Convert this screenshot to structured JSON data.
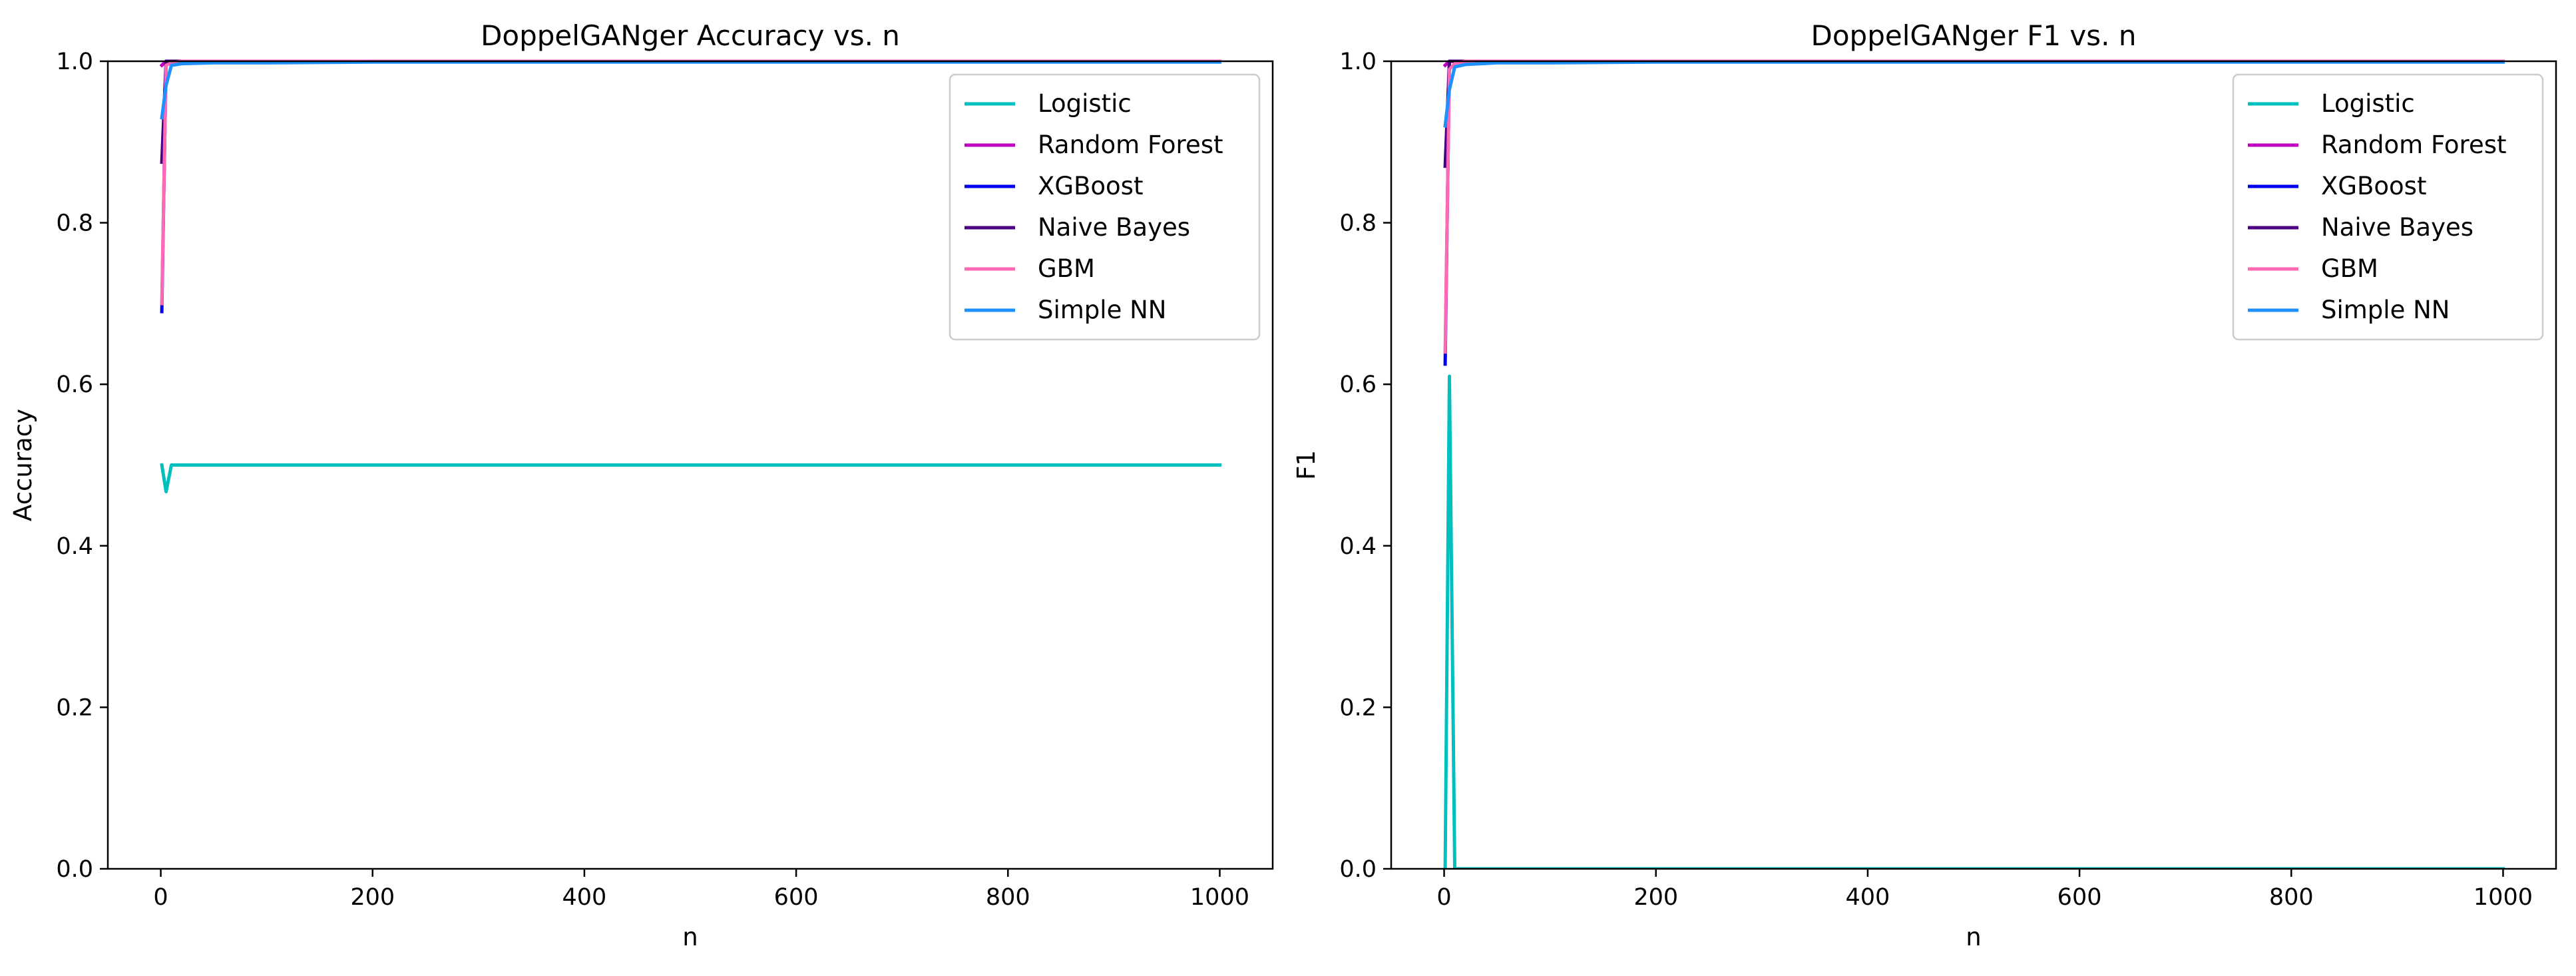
{
  "chart_data": [
    {
      "type": "line",
      "title": "DoppelGANger Accuracy vs. n",
      "xlabel": "n",
      "ylabel": "Accuracy",
      "xlim": [
        -50,
        1050
      ],
      "ylim": [
        0,
        1
      ],
      "xticks": [
        0,
        200,
        400,
        600,
        800,
        1000
      ],
      "yticks": [
        0.0,
        0.2,
        0.4,
        0.6,
        0.8,
        1.0
      ],
      "grid": false,
      "legend": "upper right",
      "series": [
        {
          "name": "Logistic",
          "color": "#00bfbf",
          "x": [
            1,
            5,
            10,
            20,
            50,
            100,
            200,
            500,
            1000
          ],
          "y": [
            0.5,
            0.467,
            0.5,
            0.5,
            0.5,
            0.5,
            0.5,
            0.5,
            0.5
          ]
        },
        {
          "name": "Random Forest",
          "color": "#bf00bf",
          "x": [
            1,
            5,
            10,
            20,
            50,
            100,
            200,
            500,
            1000
          ],
          "y": [
            0.995,
            1.0,
            1.0,
            1.0,
            1.0,
            1.0,
            1.0,
            1.0,
            1.0
          ]
        },
        {
          "name": "XGBoost",
          "color": "#0000ee",
          "x": [
            1,
            5,
            10,
            20,
            50,
            100,
            200,
            500,
            1000
          ],
          "y": [
            0.69,
            1.0,
            1.0,
            1.0,
            1.0,
            1.0,
            1.0,
            1.0,
            1.0
          ]
        },
        {
          "name": "Naive Bayes",
          "color": "#4b0082",
          "x": [
            1,
            5,
            10,
            20,
            50,
            100,
            200,
            500,
            1000
          ],
          "y": [
            0.875,
            1.0,
            1.0,
            1.0,
            1.0,
            1.0,
            1.0,
            1.0,
            1.0
          ]
        },
        {
          "name": "GBM",
          "color": "#ff69b4",
          "x": [
            1,
            5,
            10,
            20,
            50,
            100,
            200,
            500,
            1000
          ],
          "y": [
            0.7,
            0.995,
            0.998,
            1.0,
            1.0,
            1.0,
            1.0,
            1.0,
            1.0
          ]
        },
        {
          "name": "Simple NN",
          "color": "#1e90ff",
          "x": [
            1,
            5,
            10,
            20,
            50,
            100,
            200,
            500,
            1000
          ],
          "y": [
            0.93,
            0.97,
            0.995,
            0.997,
            0.998,
            0.998,
            0.999,
            0.999,
            0.999
          ]
        }
      ]
    },
    {
      "type": "line",
      "title": "DoppelGANger F1 vs. n",
      "xlabel": "n",
      "ylabel": "F1",
      "xlim": [
        -50,
        1050
      ],
      "ylim": [
        0,
        1
      ],
      "xticks": [
        0,
        200,
        400,
        600,
        800,
        1000
      ],
      "yticks": [
        0.0,
        0.2,
        0.4,
        0.6,
        0.8,
        1.0
      ],
      "grid": false,
      "legend": "upper right",
      "series": [
        {
          "name": "Logistic",
          "color": "#00bfbf",
          "x": [
            1,
            5,
            10,
            20,
            50,
            100,
            200,
            500,
            1000
          ],
          "y": [
            0.0,
            0.61,
            0.0,
            0.0,
            0.0,
            0.0,
            0.0,
            0.0,
            0.0
          ]
        },
        {
          "name": "Random Forest",
          "color": "#bf00bf",
          "x": [
            1,
            5,
            10,
            20,
            50,
            100,
            200,
            500,
            1000
          ],
          "y": [
            0.995,
            1.0,
            1.0,
            1.0,
            1.0,
            1.0,
            1.0,
            1.0,
            1.0
          ]
        },
        {
          "name": "XGBoost",
          "color": "#0000ee",
          "x": [
            1,
            5,
            10,
            20,
            50,
            100,
            200,
            500,
            1000
          ],
          "y": [
            0.625,
            1.0,
            1.0,
            1.0,
            1.0,
            1.0,
            1.0,
            1.0,
            1.0
          ]
        },
        {
          "name": "Naive Bayes",
          "color": "#4b0082",
          "x": [
            1,
            5,
            10,
            20,
            50,
            100,
            200,
            500,
            1000
          ],
          "y": [
            0.87,
            1.0,
            1.0,
            1.0,
            1.0,
            1.0,
            1.0,
            1.0,
            1.0
          ]
        },
        {
          "name": "GBM",
          "color": "#ff69b4",
          "x": [
            1,
            5,
            10,
            20,
            50,
            100,
            200,
            500,
            1000
          ],
          "y": [
            0.64,
            0.99,
            0.997,
            1.0,
            1.0,
            1.0,
            1.0,
            1.0,
            1.0
          ]
        },
        {
          "name": "Simple NN",
          "color": "#1e90ff",
          "x": [
            1,
            5,
            10,
            20,
            50,
            100,
            200,
            500,
            1000
          ],
          "y": [
            0.92,
            0.965,
            0.993,
            0.996,
            0.998,
            0.998,
            0.999,
            0.999,
            0.999
          ]
        }
      ]
    }
  ]
}
